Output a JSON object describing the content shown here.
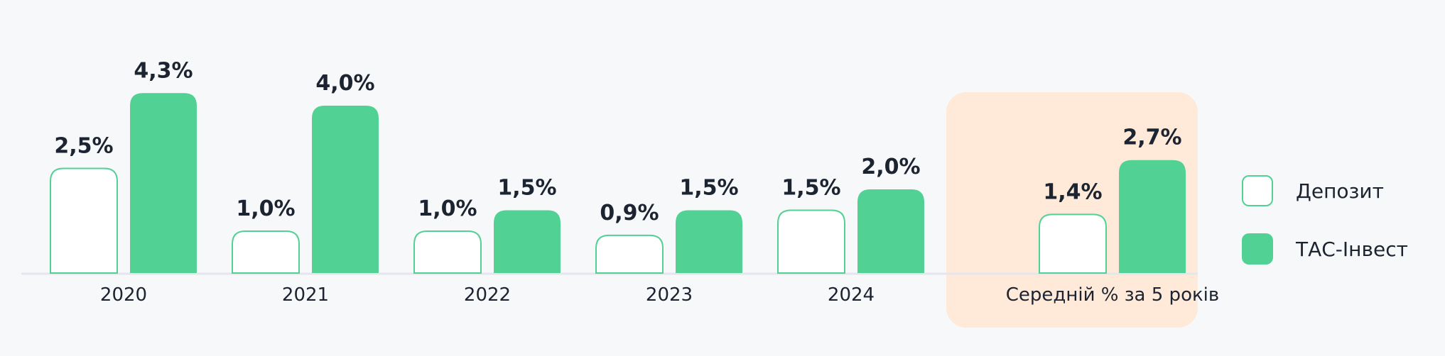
{
  "chart_data": {
    "type": "bar",
    "categories": [
      "2020",
      "2021",
      "2022",
      "2023",
      "2024",
      "Середній % за 5 років"
    ],
    "series": [
      {
        "name": "Депозит",
        "values": [
          2.5,
          1.0,
          1.0,
          0.9,
          1.5,
          1.4
        ],
        "labels": [
          "2,5%",
          "1,0%",
          "1,0%",
          "0,9%",
          "1,5%",
          "1,4%"
        ],
        "style": "outline"
      },
      {
        "name": "ТАС-Інвест",
        "values": [
          4.3,
          4.0,
          1.5,
          1.5,
          2.0,
          2.7
        ],
        "labels": [
          "4,3%",
          "4,0%",
          "1,5%",
          "1,5%",
          "2,0%",
          "2,7%"
        ],
        "style": "filled"
      }
    ],
    "highlighted_category": "Середній % за 5 років",
    "legend_position": "right",
    "ylim": [
      0,
      4.5
    ],
    "grid": false
  },
  "colors": {
    "accent": "#52d194",
    "bar_outline": "#52d194",
    "bar_fill_outline": "#ffffff",
    "highlight_bg": "#ffe9d8",
    "baseline": "#e3e6ec",
    "text": "#1c2431",
    "background": "#f7f8fa"
  }
}
